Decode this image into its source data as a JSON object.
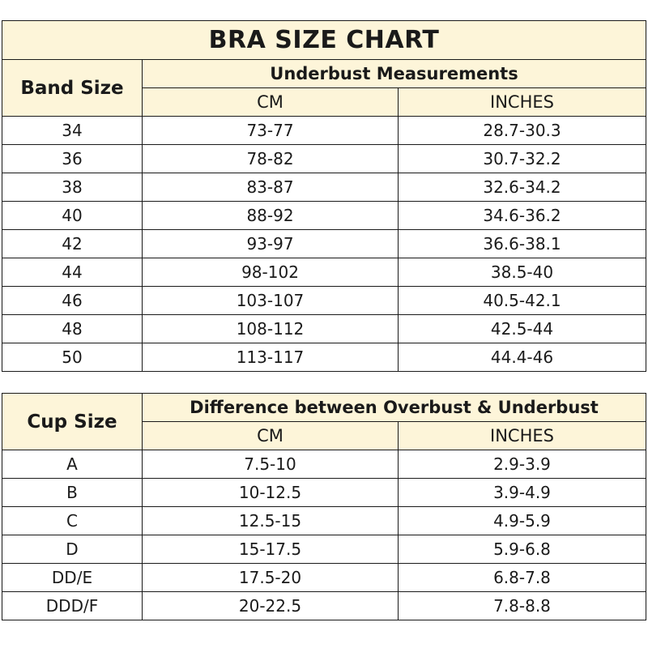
{
  "band_table": {
    "title": "BRA SIZE CHART",
    "row_header": "Band Size",
    "group_header": "Underbust Measurements",
    "col_cm": "CM",
    "col_inches": "INCHES",
    "rows": [
      {
        "size": "34",
        "cm": "73-77",
        "inches": "28.7-30.3"
      },
      {
        "size": "36",
        "cm": "78-82",
        "inches": "30.7-32.2"
      },
      {
        "size": "38",
        "cm": "83-87",
        "inches": "32.6-34.2"
      },
      {
        "size": "40",
        "cm": "88-92",
        "inches": "34.6-36.2"
      },
      {
        "size": "42",
        "cm": "93-97",
        "inches": "36.6-38.1"
      },
      {
        "size": "44",
        "cm": "98-102",
        "inches": "38.5-40"
      },
      {
        "size": "46",
        "cm": "103-107",
        "inches": "40.5-42.1"
      },
      {
        "size": "48",
        "cm": "108-112",
        "inches": "42.5-44"
      },
      {
        "size": "50",
        "cm": "113-117",
        "inches": "44.4-46"
      }
    ]
  },
  "cup_table": {
    "row_header": "Cup Size",
    "group_header": "Difference between Overbust & Underbust",
    "col_cm": "CM",
    "col_inches": "INCHES",
    "rows": [
      {
        "size": "A",
        "cm": "7.5-10",
        "inches": "2.9-3.9"
      },
      {
        "size": "B",
        "cm": "10-12.5",
        "inches": "3.9-4.9"
      },
      {
        "size": "C",
        "cm": "12.5-15",
        "inches": "4.9-5.9"
      },
      {
        "size": "D",
        "cm": "15-17.5",
        "inches": "5.9-6.8"
      },
      {
        "size": "DD/E",
        "cm": "17.5-20",
        "inches": "6.8-7.8"
      },
      {
        "size": "DDD/F",
        "cm": "20-22.5",
        "inches": "7.8-8.8"
      }
    ]
  },
  "colors": {
    "header_background": "#fdf5d9",
    "border": "#1a1a1a"
  }
}
